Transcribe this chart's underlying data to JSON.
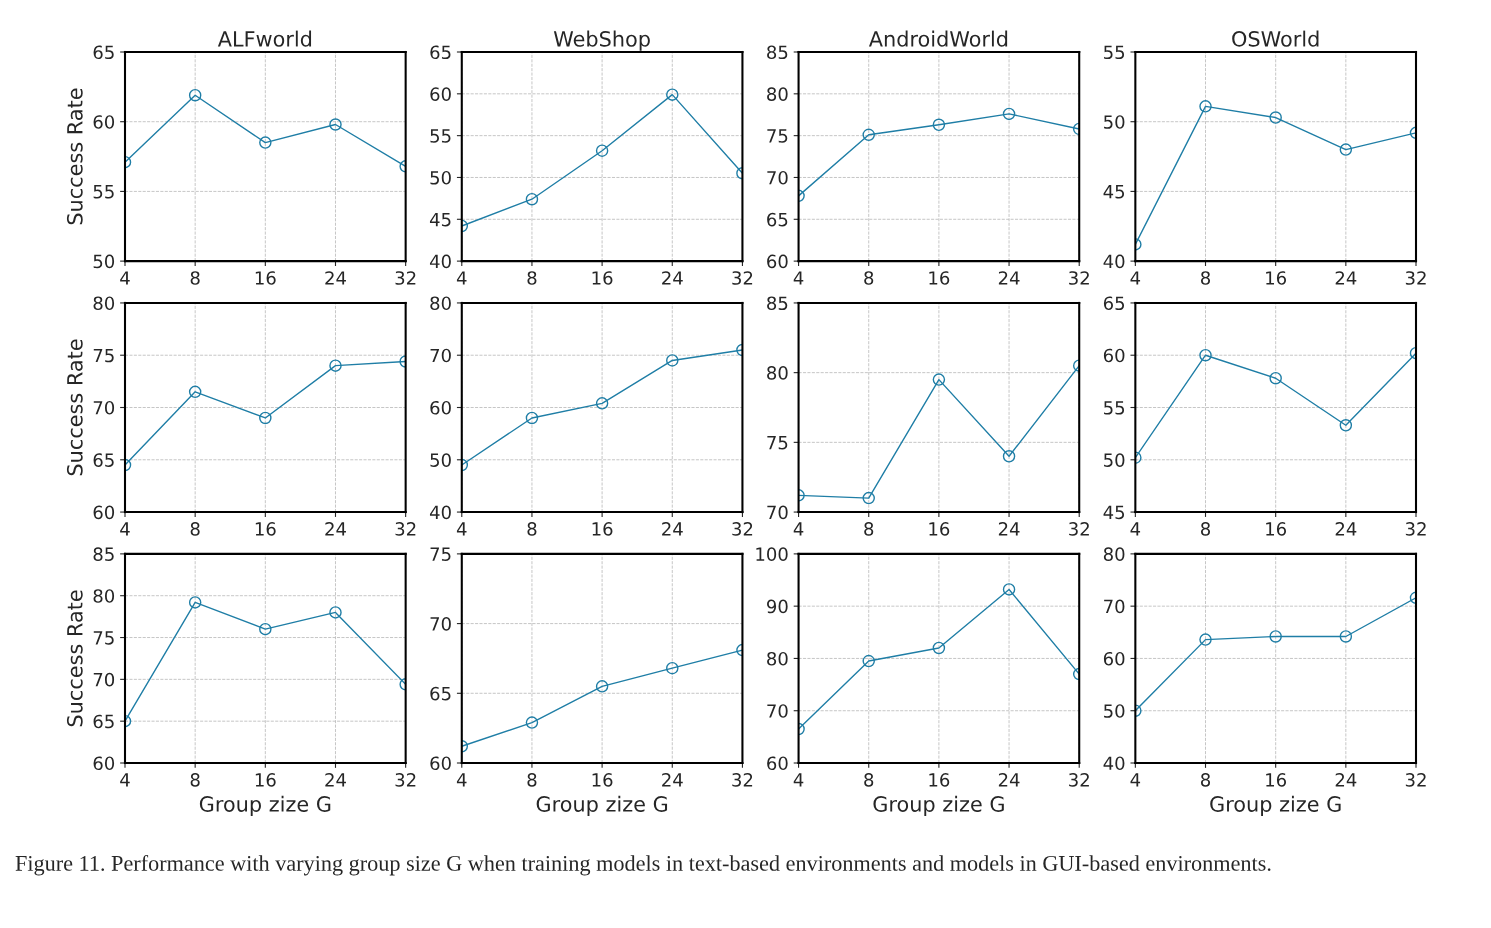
{
  "chart_data": [
    {
      "type": "line",
      "title": "ALFworld",
      "ylabel": "Success Rate",
      "categories": [
        "4",
        "8",
        "16",
        "24",
        "32"
      ],
      "ylim": [
        50,
        65
      ],
      "yticks": [
        50,
        55,
        60,
        65
      ],
      "grid": true,
      "marker": "circle",
      "line_style": "solid",
      "series": [
        {
          "color": "#1f7ea6",
          "values": [
            57.1,
            61.9,
            58.5,
            59.8,
            56.8
          ]
        }
      ]
    },
    {
      "type": "line",
      "title": "WebShop",
      "categories": [
        "4",
        "8",
        "16",
        "24",
        "32"
      ],
      "ylim": [
        40,
        65
      ],
      "yticks": [
        40,
        45,
        50,
        55,
        60,
        65
      ],
      "grid": true,
      "marker": "circle",
      "line_style": "solid",
      "series": [
        {
          "color": "#1f7ea6",
          "values": [
            44.2,
            47.4,
            53.2,
            59.9,
            50.5
          ]
        }
      ]
    },
    {
      "type": "line",
      "title": "AndroidWorld",
      "categories": [
        "4",
        "8",
        "16",
        "24",
        "32"
      ],
      "ylim": [
        60,
        85
      ],
      "yticks": [
        60,
        65,
        70,
        75,
        80,
        85
      ],
      "grid": true,
      "marker": "circle",
      "line_style": "solid",
      "series": [
        {
          "color": "#1f7ea6",
          "values": [
            67.8,
            75.1,
            76.3,
            77.6,
            75.8
          ]
        }
      ]
    },
    {
      "type": "line",
      "title": "OSWorld",
      "categories": [
        "4",
        "8",
        "16",
        "24",
        "32"
      ],
      "ylim": [
        40,
        55
      ],
      "yticks": [
        40,
        45,
        50,
        55
      ],
      "grid": true,
      "marker": "circle",
      "line_style": "solid",
      "series": [
        {
          "color": "#1f7ea6",
          "values": [
            41.2,
            51.1,
            50.3,
            48.0,
            49.2
          ]
        }
      ]
    },
    {
      "type": "line",
      "ylabel": "Success Rate",
      "categories": [
        "4",
        "8",
        "16",
        "24",
        "32"
      ],
      "ylim": [
        60,
        80
      ],
      "yticks": [
        60,
        65,
        70,
        75,
        80
      ],
      "grid": true,
      "marker": "circle",
      "line_style": "solid",
      "series": [
        {
          "color": "#1f7ea6",
          "values": [
            64.5,
            71.5,
            69.0,
            74.0,
            74.4
          ]
        }
      ]
    },
    {
      "type": "line",
      "categories": [
        "4",
        "8",
        "16",
        "24",
        "32"
      ],
      "ylim": [
        40,
        80
      ],
      "yticks": [
        40,
        50,
        60,
        70,
        80
      ],
      "grid": true,
      "marker": "circle",
      "line_style": "solid",
      "series": [
        {
          "color": "#1f7ea6",
          "values": [
            49.0,
            58.0,
            60.8,
            69.0,
            71.0
          ]
        }
      ]
    },
    {
      "type": "line",
      "categories": [
        "4",
        "8",
        "16",
        "24",
        "32"
      ],
      "ylim": [
        70,
        85
      ],
      "yticks": [
        70,
        75,
        80,
        85
      ],
      "grid": true,
      "marker": "circle",
      "line_style": "solid",
      "series": [
        {
          "color": "#1f7ea6",
          "values": [
            71.2,
            71.0,
            79.5,
            74.0,
            80.5
          ]
        }
      ]
    },
    {
      "type": "line",
      "categories": [
        "4",
        "8",
        "16",
        "24",
        "32"
      ],
      "ylim": [
        45,
        65
      ],
      "yticks": [
        45,
        50,
        55,
        60,
        65
      ],
      "grid": true,
      "marker": "circle",
      "line_style": "solid",
      "series": [
        {
          "color": "#1f7ea6",
          "values": [
            50.2,
            60.0,
            57.8,
            53.3,
            60.2
          ]
        }
      ]
    },
    {
      "type": "line",
      "ylabel": "Success Rate",
      "xlabel": "Group zize G",
      "categories": [
        "4",
        "8",
        "16",
        "24",
        "32"
      ],
      "ylim": [
        60,
        85
      ],
      "yticks": [
        60,
        65,
        70,
        75,
        80,
        85
      ],
      "grid": true,
      "marker": "circle",
      "line_style": "solid",
      "series": [
        {
          "color": "#1f7ea6",
          "values": [
            65.0,
            79.2,
            76.0,
            78.0,
            69.4
          ]
        }
      ]
    },
    {
      "type": "line",
      "xlabel": "Group zize G",
      "categories": [
        "4",
        "8",
        "16",
        "24",
        "32"
      ],
      "ylim": [
        60,
        75
      ],
      "yticks": [
        60,
        65,
        70,
        75
      ],
      "grid": true,
      "marker": "circle",
      "line_style": "solid",
      "series": [
        {
          "color": "#1f7ea6",
          "values": [
            61.2,
            62.9,
            65.5,
            66.8,
            68.1
          ]
        }
      ]
    },
    {
      "type": "line",
      "xlabel": "Group zize G",
      "categories": [
        "4",
        "8",
        "16",
        "24",
        "32"
      ],
      "ylim": [
        60,
        100
      ],
      "yticks": [
        60,
        70,
        80,
        90,
        100
      ],
      "grid": true,
      "marker": "circle",
      "line_style": "solid",
      "series": [
        {
          "color": "#1f7ea6",
          "values": [
            66.5,
            79.5,
            82.0,
            93.2,
            77.0
          ]
        }
      ]
    },
    {
      "type": "line",
      "xlabel": "Group zize G",
      "categories": [
        "4",
        "8",
        "16",
        "24",
        "32"
      ],
      "ylim": [
        40,
        80
      ],
      "yticks": [
        40,
        50,
        60,
        70,
        80
      ],
      "grid": true,
      "marker": "circle",
      "line_style": "solid",
      "series": [
        {
          "color": "#1f7ea6",
          "values": [
            50.0,
            63.6,
            64.2,
            64.2,
            71.6
          ]
        }
      ],
      "annotations": [
        "Figure 11. Performance with varying group size G when training models in text-based environments and models in GUI-based environments."
      ]
    }
  ]
}
